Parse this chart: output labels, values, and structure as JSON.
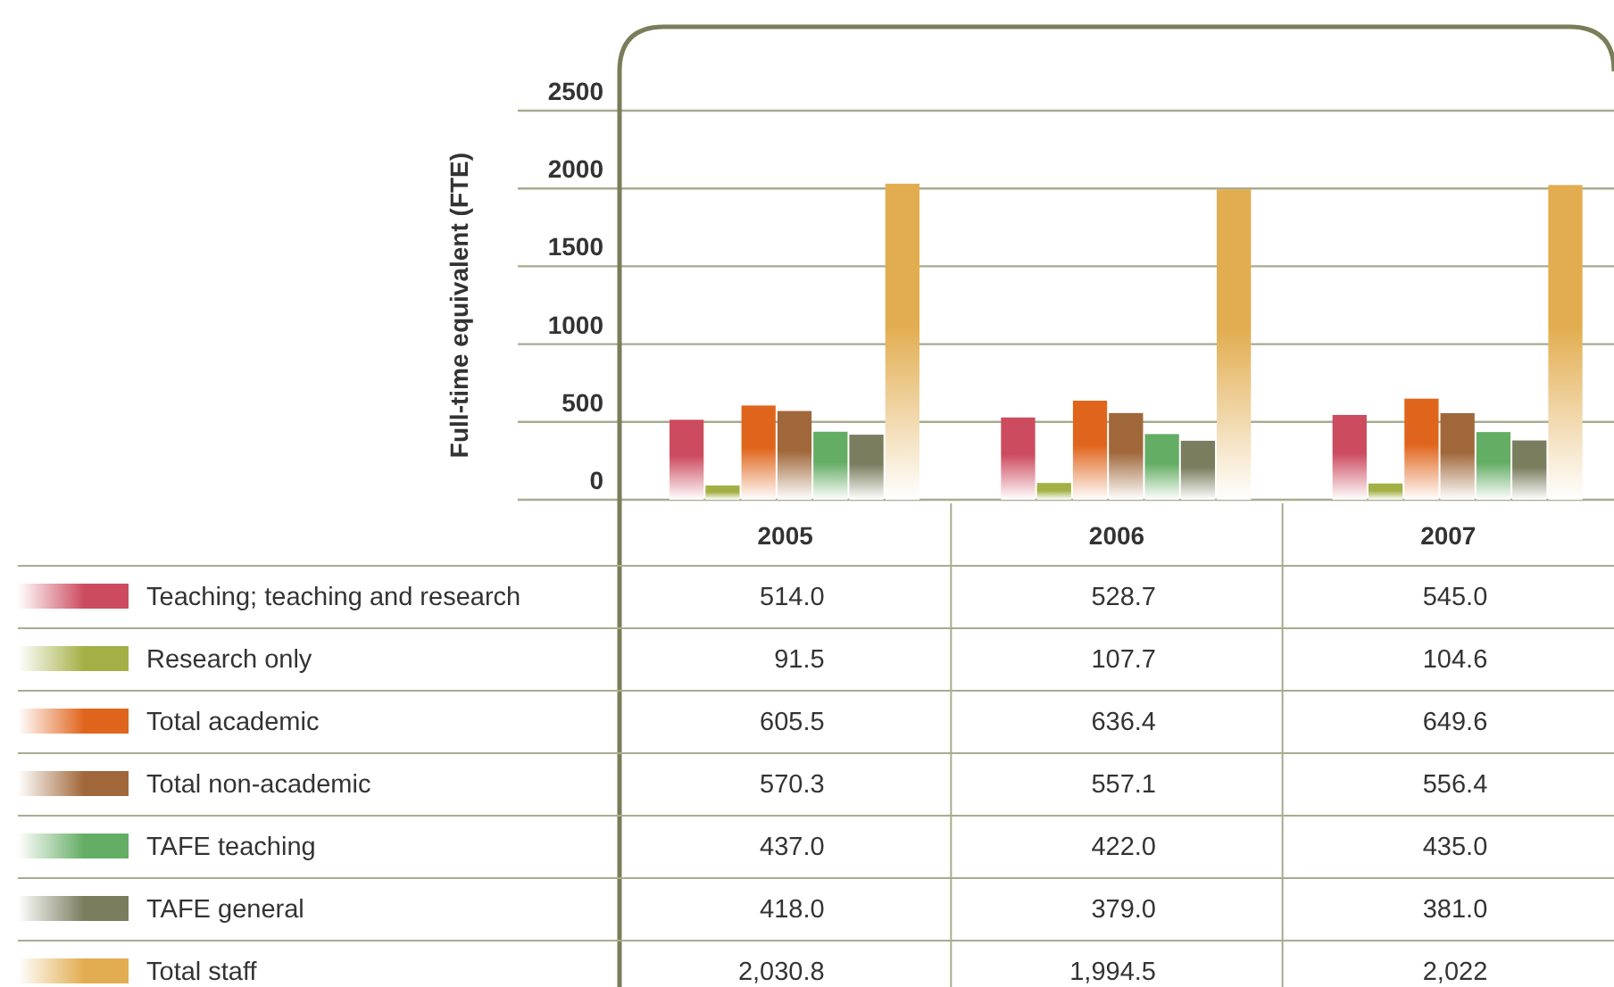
{
  "chart_data": {
    "type": "bar",
    "ylabel": "Full-time equivalent (FTE)",
    "categories": [
      "2005",
      "2006",
      "2007"
    ],
    "ylim": [
      0,
      2500
    ],
    "yticks": [
      0,
      500,
      1000,
      1500,
      2000,
      2500
    ],
    "grid": "y",
    "legend": "bottom left",
    "series": [
      {
        "name": "Teaching; teaching and research",
        "color": "#cc4b5f",
        "values": [
          514.0,
          528.7,
          545.0
        ],
        "value_labels": [
          "514.0",
          "528.7",
          "545.0"
        ]
      },
      {
        "name": "Research only",
        "color": "#a3b045",
        "values": [
          91.5,
          107.7,
          104.6
        ],
        "value_labels": [
          "91.5",
          "107.7",
          "104.6"
        ]
      },
      {
        "name": "Total academic",
        "color": "#e0651c",
        "values": [
          605.5,
          636.4,
          649.6
        ],
        "value_labels": [
          "605.5",
          "636.4",
          "649.6"
        ]
      },
      {
        "name": "Total non-academic",
        "color": "#a0673a",
        "values": [
          570.3,
          557.1,
          556.4
        ],
        "value_labels": [
          "570.3",
          "557.1",
          "556.4"
        ]
      },
      {
        "name": "TAFE teaching",
        "color": "#64ad64",
        "values": [
          437.0,
          422.0,
          435.0
        ],
        "value_labels": [
          "437.0",
          "422.0",
          "435.0"
        ]
      },
      {
        "name": "TAFE general",
        "color": "#7a7d5e",
        "values": [
          418.0,
          379.0,
          381.0
        ],
        "value_labels": [
          "418.0",
          "379.0",
          "381.0"
        ]
      },
      {
        "name": "Total staff",
        "color": "#e2ad50",
        "values": [
          2030.8,
          1994.5,
          2022
        ],
        "value_labels": [
          "2,030.8",
          "1,994.5",
          "2,022"
        ]
      }
    ]
  }
}
